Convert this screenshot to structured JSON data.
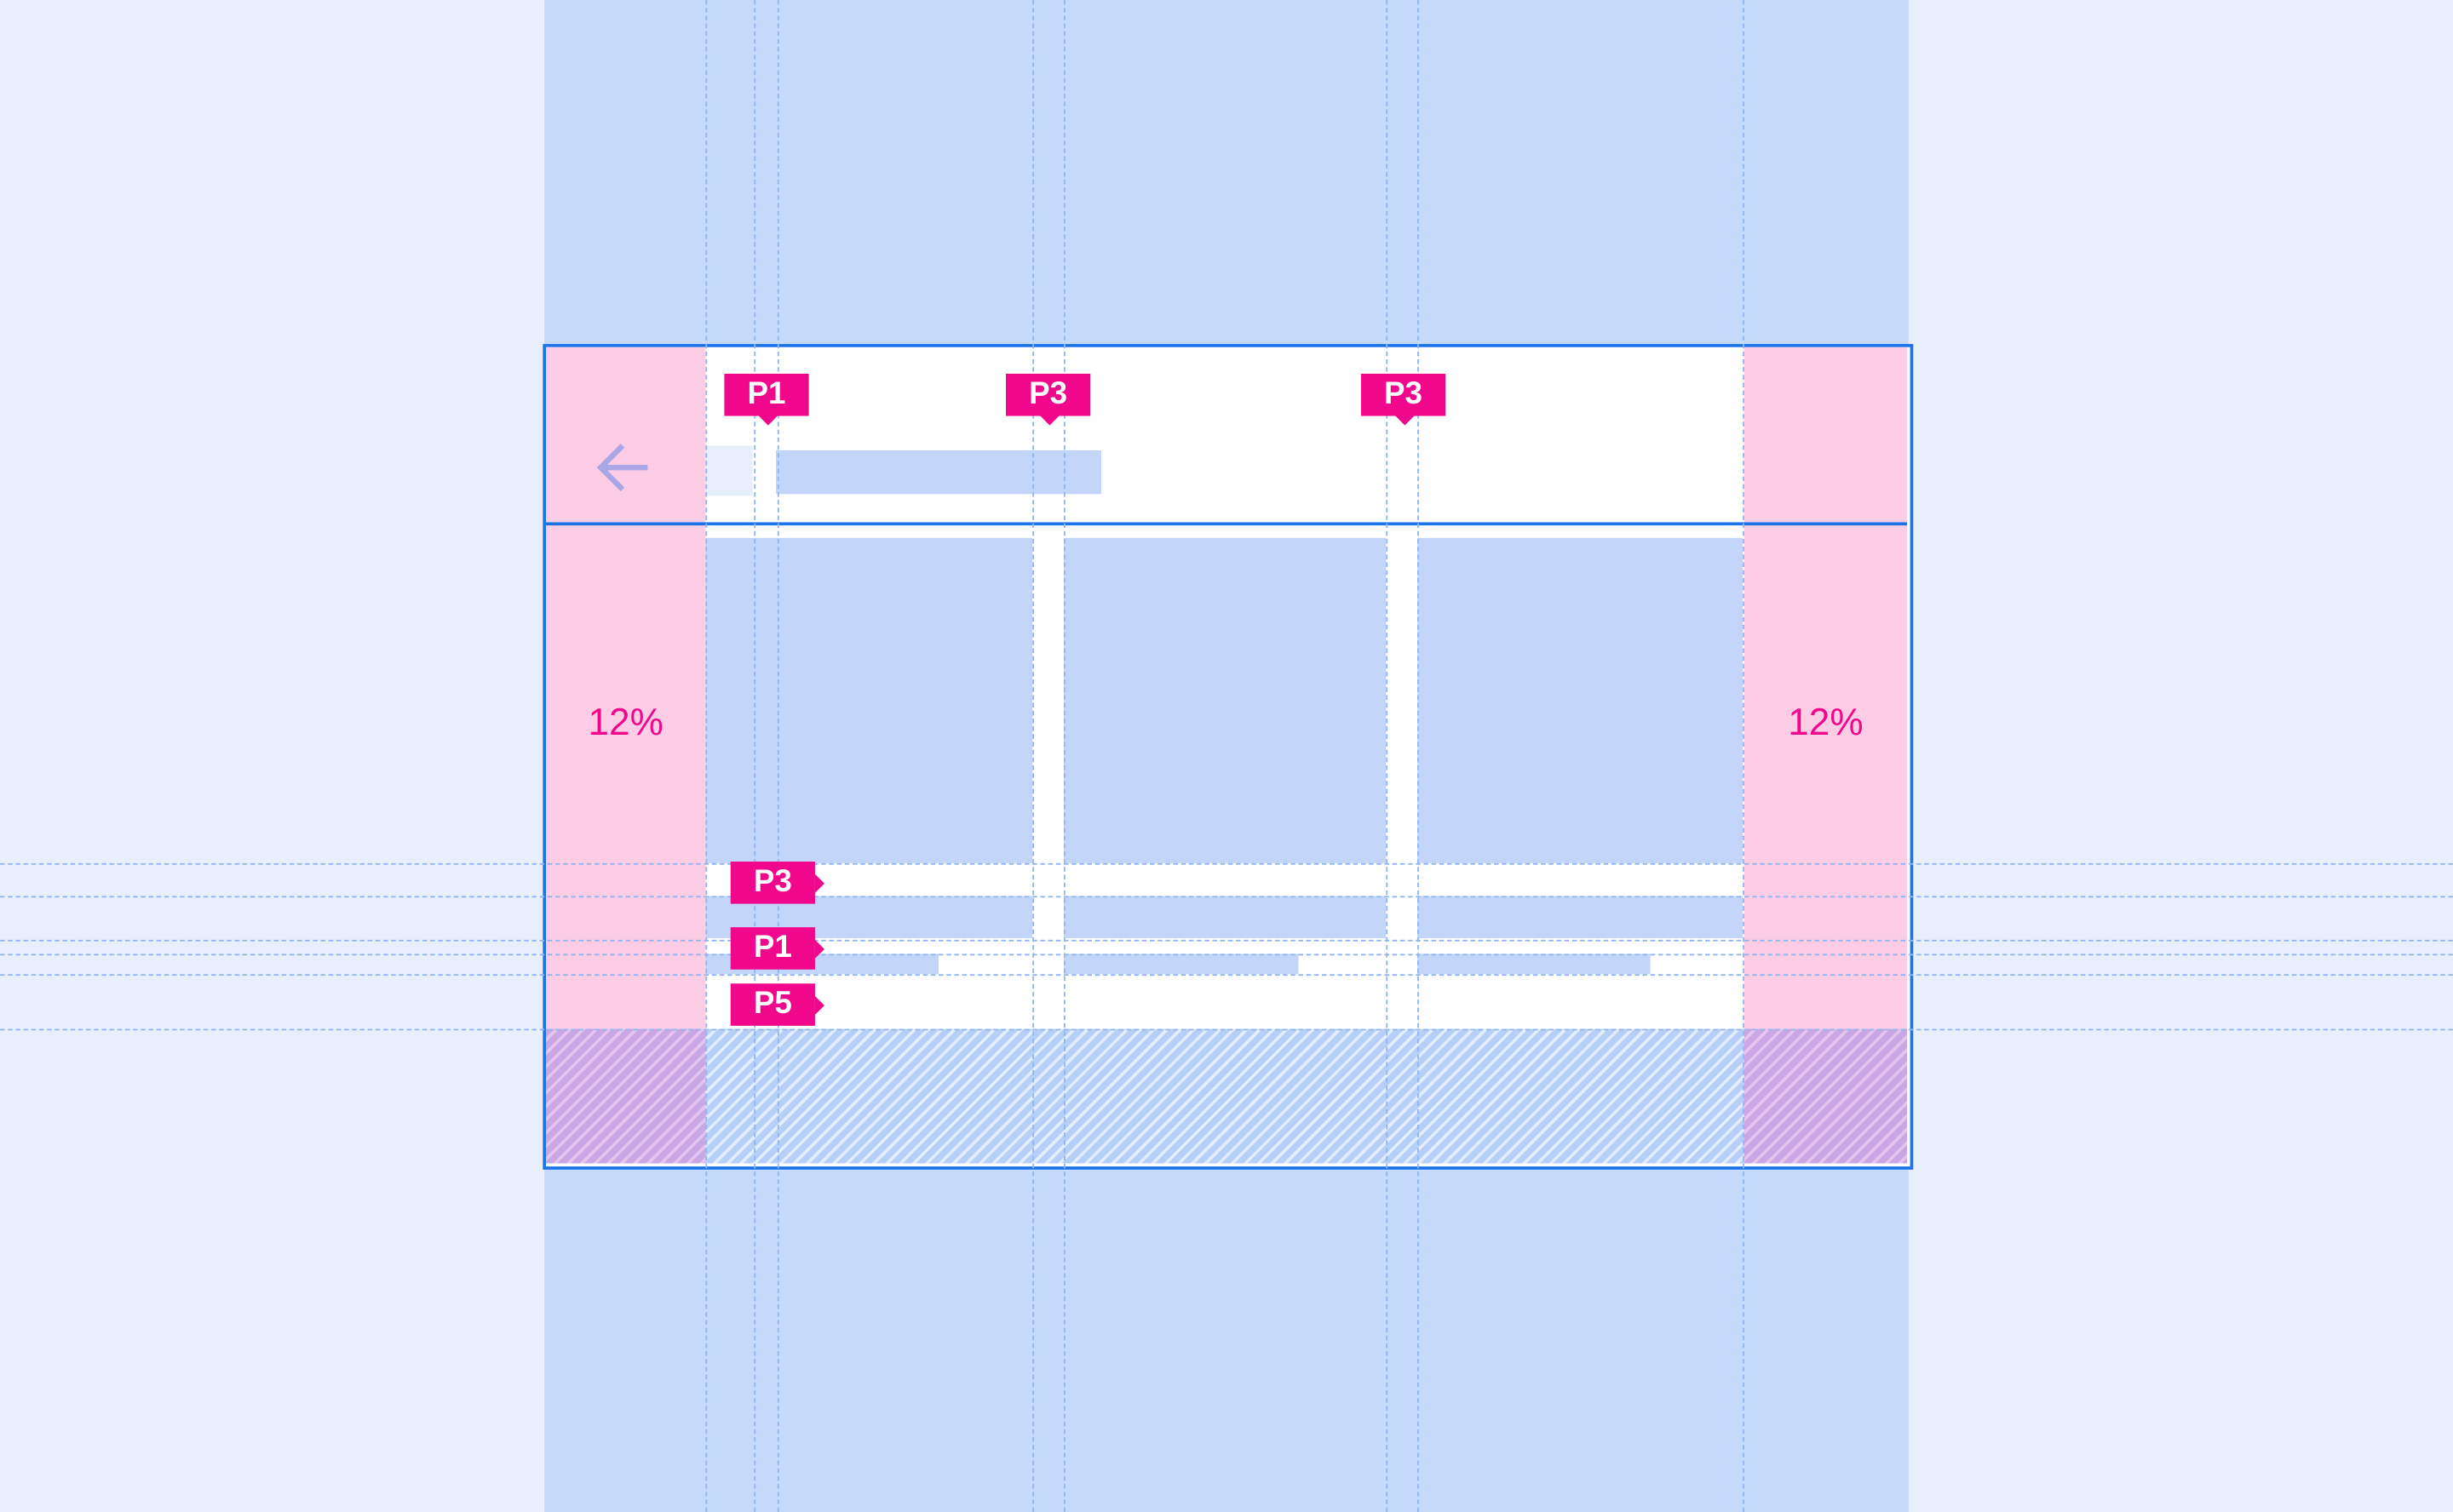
{
  "margins": {
    "left_label": "12%",
    "right_label": "12%"
  },
  "header_badges": [
    "P1",
    "P3",
    "P3"
  ],
  "row_badges": [
    "P3",
    "P1",
    "P5"
  ],
  "icons": {
    "back": "arrow-left-icon"
  },
  "colors": {
    "accent": "#f0078b",
    "frame": "#1a73e8",
    "margin": "#fdcde6",
    "placeholder": "#c5d9fa"
  }
}
